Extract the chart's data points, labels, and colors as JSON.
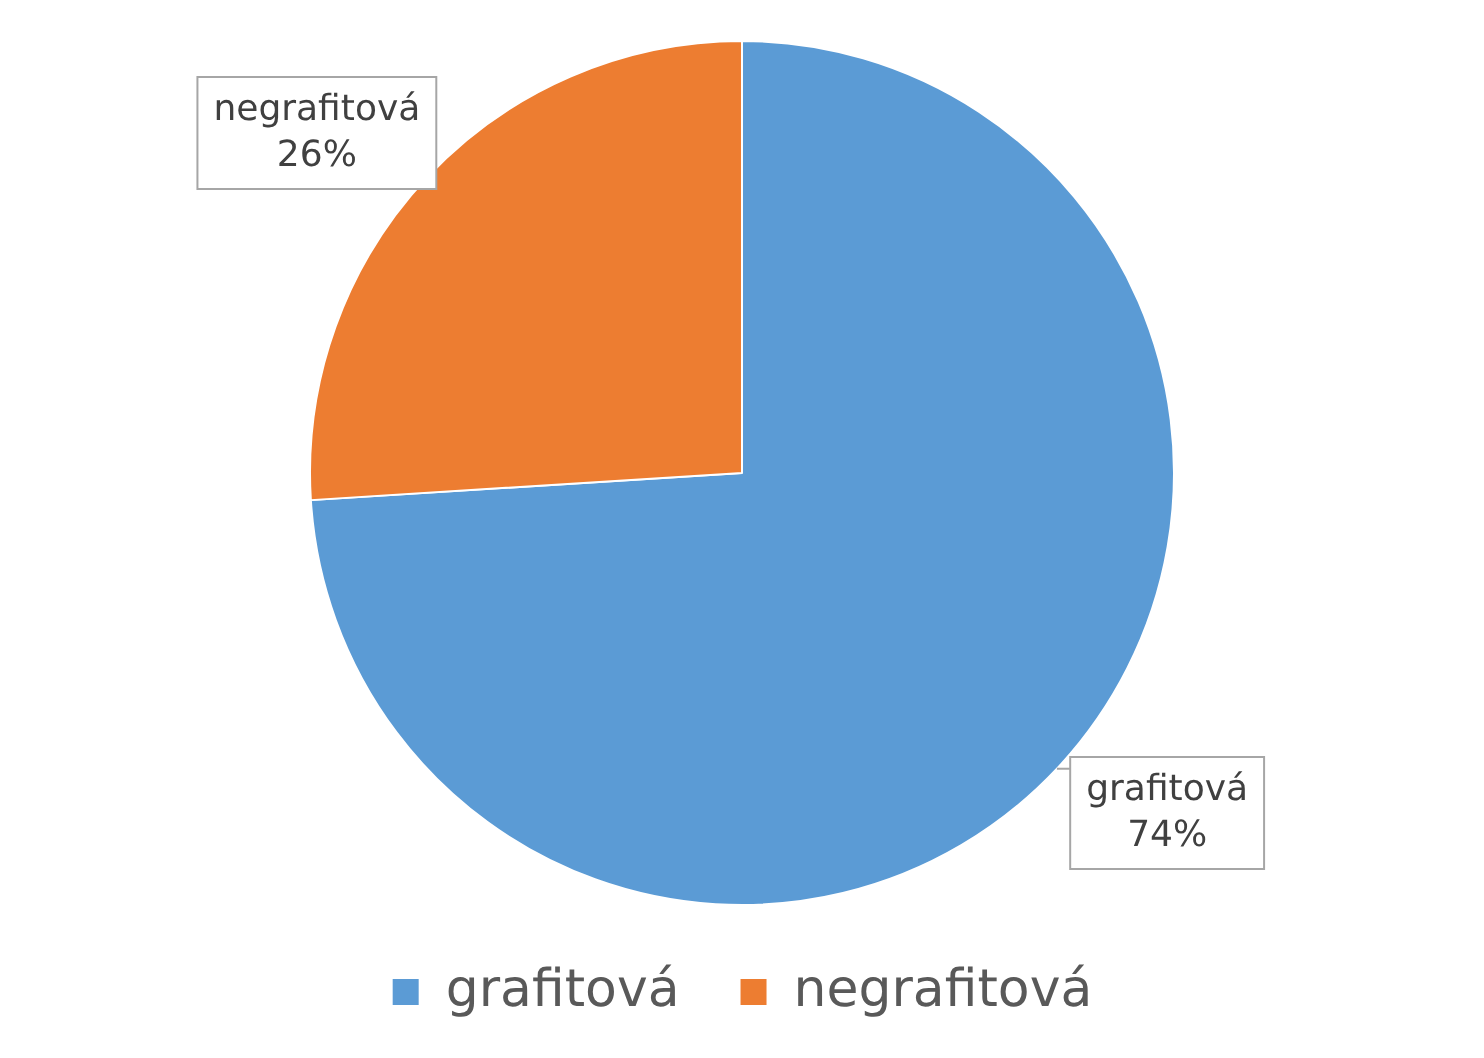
{
  "chart_data": {
    "type": "pie",
    "categories": [
      "grafitová",
      "negrafitová"
    ],
    "values": [
      74,
      26
    ],
    "colors": [
      "#5b9bd5",
      "#ed7d31"
    ],
    "value_labels": [
      "74%",
      "26%"
    ],
    "legend": "bottom"
  }
}
